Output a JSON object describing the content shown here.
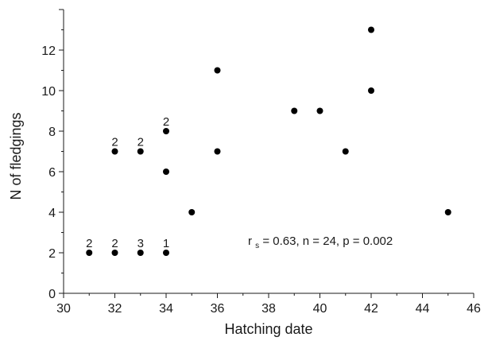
{
  "chart_data": {
    "type": "scatter",
    "xlabel": "Hatching date",
    "ylabel": "N of fledgings",
    "xlim": [
      30,
      46
    ],
    "ylim": [
      0,
      14
    ],
    "x_ticks": [
      30,
      32,
      34,
      36,
      38,
      40,
      42,
      44,
      46
    ],
    "y_ticks": [
      0,
      2,
      4,
      6,
      8,
      10,
      12
    ],
    "grid": false,
    "legend": "none",
    "points": [
      {
        "x": 31,
        "y": 2
      },
      {
        "x": 32,
        "y": 2
      },
      {
        "x": 33,
        "y": 2
      },
      {
        "x": 34,
        "y": 2
      },
      {
        "x": 32,
        "y": 7
      },
      {
        "x": 33,
        "y": 7
      },
      {
        "x": 34,
        "y": 8
      },
      {
        "x": 34,
        "y": 6
      },
      {
        "x": 35,
        "y": 4
      },
      {
        "x": 36,
        "y": 11
      },
      {
        "x": 36,
        "y": 7
      },
      {
        "x": 39,
        "y": 9
      },
      {
        "x": 40,
        "y": 9
      },
      {
        "x": 41,
        "y": 7
      },
      {
        "x": 42,
        "y": 13
      },
      {
        "x": 42,
        "y": 10
      },
      {
        "x": 45,
        "y": 4
      }
    ],
    "point_counts": [
      {
        "x": 31,
        "y": 2,
        "label": "2"
      },
      {
        "x": 32,
        "y": 2,
        "label": "2"
      },
      {
        "x": 33,
        "y": 2,
        "label": "3"
      },
      {
        "x": 34,
        "y": 2,
        "label": "1"
      },
      {
        "x": 32,
        "y": 7,
        "label": "2"
      },
      {
        "x": 33,
        "y": 7,
        "label": "2"
      },
      {
        "x": 34,
        "y": 8,
        "label": "2"
      }
    ],
    "annotation": {
      "r_main": "r",
      "r_sub": "s",
      "rest": " = 0.63, n = 24, p = 0.002"
    },
    "colors": {
      "points": "#000000",
      "axes": "#1a1a1a"
    }
  }
}
